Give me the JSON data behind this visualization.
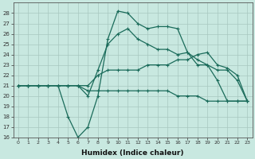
{
  "xlabel": "Humidex (Indice chaleur)",
  "background_color": "#c8e8e0",
  "grid_color": "#a8c8c0",
  "line_color": "#1a6b5a",
  "hours": [
    0,
    1,
    2,
    3,
    4,
    5,
    6,
    7,
    8,
    9,
    10,
    11,
    12,
    13,
    14,
    15,
    16,
    17,
    18,
    19,
    20,
    21,
    22,
    23
  ],
  "series": [
    [
      21.0,
      21.0,
      21.0,
      21.0,
      21.0,
      18.0,
      16.0,
      17.0,
      20.0,
      25.5,
      28.2,
      28.0,
      27.0,
      26.5,
      26.7,
      26.7,
      26.5,
      24.2,
      23.0,
      23.0,
      21.5,
      19.5,
      19.5,
      19.5
    ],
    [
      21.0,
      21.0,
      21.0,
      21.0,
      21.0,
      21.0,
      21.0,
      20.0,
      22.5,
      25.0,
      26.0,
      26.5,
      25.5,
      25.0,
      24.5,
      24.5,
      24.0,
      24.2,
      23.5,
      23.0,
      22.5,
      22.5,
      21.5,
      19.5
    ],
    [
      21.0,
      21.0,
      21.0,
      21.0,
      21.0,
      21.0,
      21.0,
      21.0,
      22.0,
      22.5,
      22.5,
      22.5,
      22.5,
      23.0,
      23.0,
      23.0,
      23.5,
      23.5,
      24.0,
      24.2,
      23.0,
      22.7,
      22.0,
      19.5
    ],
    [
      21.0,
      21.0,
      21.0,
      21.0,
      21.0,
      21.0,
      21.0,
      20.5,
      20.5,
      20.5,
      20.5,
      20.5,
      20.5,
      20.5,
      20.5,
      20.5,
      20.0,
      20.0,
      20.0,
      19.5,
      19.5,
      19.5,
      19.5,
      19.5
    ]
  ],
  "ylim": [
    16,
    29
  ],
  "yticks": [
    16,
    17,
    18,
    19,
    20,
    21,
    22,
    23,
    24,
    25,
    26,
    27,
    28
  ],
  "xticks": [
    0,
    1,
    2,
    3,
    4,
    5,
    6,
    7,
    8,
    9,
    10,
    11,
    12,
    13,
    14,
    15,
    16,
    17,
    18,
    19,
    20,
    21,
    22,
    23
  ],
  "marker": "+",
  "marker_size": 3.5,
  "line_width": 0.9
}
